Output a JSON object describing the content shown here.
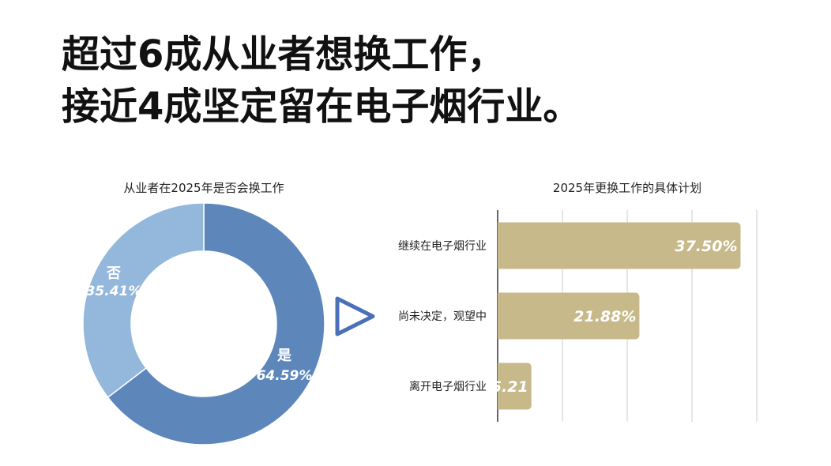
{
  "headline": {
    "line1": "超过6成从业者想换工作，",
    "line2": "接近4成坚定留在电子烟行业。"
  },
  "colors": {
    "yes": "#5d87bb",
    "no": "#94b7dc",
    "bar": "#c8b98a",
    "arrow": "#4a70b8",
    "grid": "#cccccc"
  },
  "icons": {
    "arrow": "play-triangle-icon"
  },
  "chart_data": [
    {
      "type": "pie",
      "title": "从业者在2025年是否会换工作",
      "slices": [
        {
          "label": "是",
          "value": 64.59,
          "value_label": "64.59%"
        },
        {
          "label": "否",
          "value": 35.41,
          "value_label": "35.41%"
        }
      ],
      "donut": true
    },
    {
      "type": "bar",
      "orientation": "horizontal",
      "title": "2025年更换工作的具体计划",
      "categories": [
        "继续在电子烟行业",
        "尚未决定，观望中",
        "离开电子烟行业"
      ],
      "values": [
        37.5,
        21.88,
        5.21
      ],
      "value_labels": [
        "37.50%",
        "21.88%",
        "5.21"
      ],
      "xlim": [
        0,
        40
      ],
      "grid": true
    }
  ]
}
